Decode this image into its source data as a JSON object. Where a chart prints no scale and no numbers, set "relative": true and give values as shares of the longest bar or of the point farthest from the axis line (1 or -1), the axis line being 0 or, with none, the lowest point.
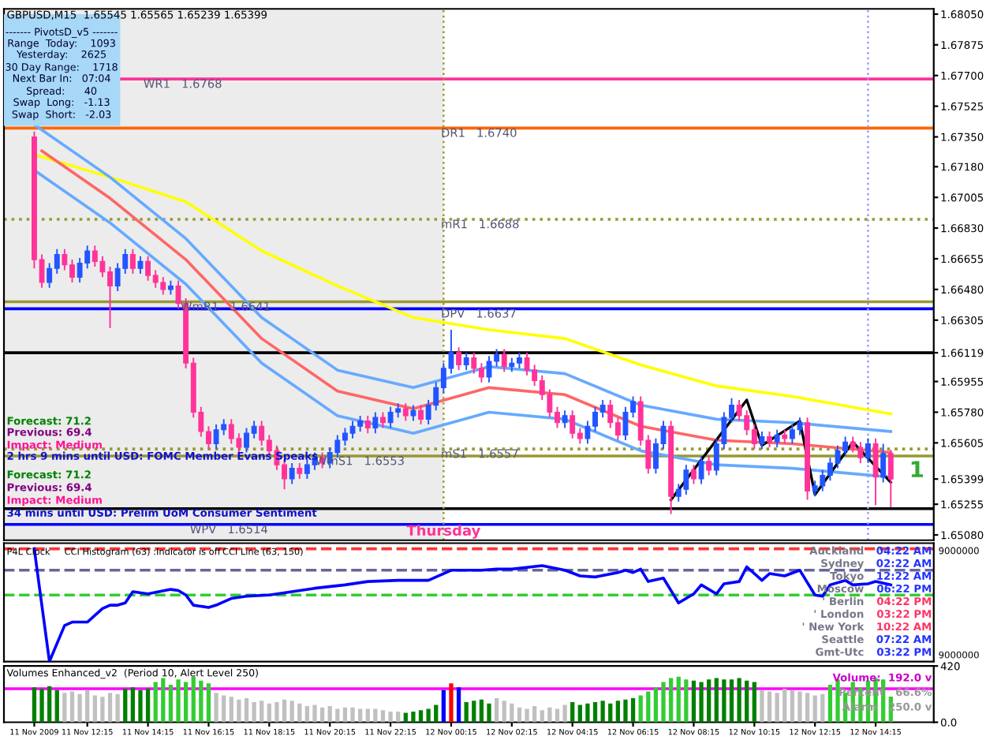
{
  "chart_data": [
    {
      "type": "candlestick",
      "title": "GBPUSD,M15  1.65545 1.65565 1.65239 1.65399",
      "tick_labels": "y",
      "x": [
        "2009-11-11T10:30",
        "2009-11-11T10:45",
        "2009-11-11T11:00",
        "2009-11-11T11:15",
        "2009-11-11T11:30",
        "2009-11-11T11:45",
        "2009-11-11T12:00",
        "2009-11-11T12:15",
        "2009-11-11T12:30",
        "2009-11-11T12:45",
        "2009-11-11T13:00",
        "2009-11-11T13:15",
        "2009-11-11T13:30",
        "2009-11-11T13:45",
        "2009-11-11T14:00",
        "2009-11-11T14:15",
        "2009-11-11T14:30",
        "2009-11-11T14:45",
        "2009-11-11T15:00",
        "2009-11-11T15:15",
        "2009-11-11T15:30",
        "2009-11-11T15:45",
        "2009-11-11T16:00",
        "2009-11-11T16:15",
        "2009-11-11T16:30",
        "2009-11-11T16:45",
        "2009-11-11T17:00",
        "2009-11-11T17:15",
        "2009-11-11T17:30",
        "2009-11-11T17:45",
        "2009-11-11T18:00",
        "2009-11-11T18:15",
        "2009-11-11T18:30",
        "2009-11-11T18:45",
        "2009-11-11T19:00",
        "2009-11-11T19:15",
        "2009-11-11T19:30",
        "2009-11-11T19:45",
        "2009-11-11T20:00",
        "2009-11-11T20:15",
        "2009-11-11T20:30",
        "2009-11-11T20:45",
        "2009-11-11T21:00",
        "2009-11-11T21:15",
        "2009-11-11T21:30",
        "2009-11-11T21:45",
        "2009-11-11T22:00",
        "2009-11-11T22:15",
        "2009-11-11T22:30",
        "2009-11-11T22:45",
        "2009-11-11T23:00",
        "2009-11-11T23:15",
        "2009-11-11T23:30",
        "2009-11-11T23:45",
        "2009-11-12T00:00",
        "2009-11-12T00:15",
        "2009-11-12T00:30",
        "2009-11-12T00:45",
        "2009-11-12T01:00",
        "2009-11-12T01:15",
        "2009-11-12T01:30",
        "2009-11-12T01:45",
        "2009-11-12T02:00",
        "2009-11-12T02:15",
        "2009-11-12T02:30",
        "2009-11-12T02:45",
        "2009-11-12T03:00",
        "2009-11-12T03:15",
        "2009-11-12T03:30",
        "2009-11-12T03:45",
        "2009-11-12T04:00",
        "2009-11-12T04:15",
        "2009-11-12T04:30",
        "2009-11-12T04:45",
        "2009-11-12T05:00",
        "2009-11-12T05:15",
        "2009-11-12T05:30",
        "2009-11-12T05:45",
        "2009-11-12T06:00",
        "2009-11-12T06:15",
        "2009-11-12T06:30",
        "2009-11-12T06:45",
        "2009-11-12T07:00",
        "2009-11-12T07:15",
        "2009-11-12T07:30",
        "2009-11-12T07:45",
        "2009-11-12T08:00",
        "2009-11-12T08:15",
        "2009-11-12T08:30",
        "2009-11-12T08:45",
        "2009-11-12T09:00",
        "2009-11-12T09:15",
        "2009-11-12T09:30",
        "2009-11-12T09:45",
        "2009-11-12T10:00",
        "2009-11-12T10:15",
        "2009-11-12T10:30",
        "2009-11-12T10:45",
        "2009-11-12T11:00",
        "2009-11-12T11:15",
        "2009-11-12T11:30",
        "2009-11-12T11:45",
        "2009-11-12T12:00",
        "2009-11-12T12:15",
        "2009-11-12T12:30",
        "2009-11-12T12:45",
        "2009-11-12T13:00",
        "2009-11-12T13:15",
        "2009-11-12T13:30",
        "2009-11-12T13:45",
        "2009-11-12T14:00",
        "2009-11-12T14:15",
        "2009-11-12T14:30",
        "2009-11-12T14:45"
      ],
      "ohlc": [
        [
          1.6735,
          1.6738,
          1.666,
          1.6665
        ],
        [
          1.6665,
          1.6668,
          1.6649,
          1.6652
        ],
        [
          1.6652,
          1.6663,
          1.6649,
          1.666
        ],
        [
          1.666,
          1.6671,
          1.6657,
          1.6668
        ],
        [
          1.6668,
          1.6671,
          1.6659,
          1.6662
        ],
        [
          1.6662,
          1.6665,
          1.6652,
          1.6655
        ],
        [
          1.6655,
          1.6666,
          1.6652,
          1.6663
        ],
        [
          1.6663,
          1.6673,
          1.666,
          1.667
        ],
        [
          1.667,
          1.6673,
          1.6661,
          1.6664
        ],
        [
          1.6664,
          1.6667,
          1.6655,
          1.6658
        ],
        [
          1.6658,
          1.6661,
          1.6626,
          1.665
        ],
        [
          1.665,
          1.6663,
          1.6647,
          1.666
        ],
        [
          1.666,
          1.6671,
          1.6657,
          1.6668
        ],
        [
          1.6668,
          1.6671,
          1.6657,
          1.666
        ],
        [
          1.666,
          1.6667,
          1.6657,
          1.6664
        ],
        [
          1.6664,
          1.6667,
          1.6653,
          1.6656
        ],
        [
          1.6656,
          1.6659,
          1.6649,
          1.6652
        ],
        [
          1.6652,
          1.6655,
          1.6645,
          1.6648
        ],
        [
          1.6648,
          1.6653,
          1.6645,
          1.665
        ],
        [
          1.665,
          1.6653,
          1.6637,
          1.664
        ],
        [
          1.664,
          1.6643,
          1.6603,
          1.6606
        ],
        [
          1.6606,
          1.6609,
          1.6575,
          1.6578
        ],
        [
          1.6578,
          1.6581,
          1.6564,
          1.6567
        ],
        [
          1.6567,
          1.657,
          1.6557,
          1.656
        ],
        [
          1.656,
          1.6571,
          1.6557,
          1.6568
        ],
        [
          1.6568,
          1.6574,
          1.6565,
          1.6571
        ],
        [
          1.6571,
          1.6574,
          1.656,
          1.6563
        ],
        [
          1.6563,
          1.6566,
          1.6555,
          1.6558
        ],
        [
          1.6558,
          1.6569,
          1.6555,
          1.6566
        ],
        [
          1.6566,
          1.6573,
          1.6563,
          1.657
        ],
        [
          1.657,
          1.6573,
          1.6559,
          1.6562
        ],
        [
          1.6562,
          1.6565,
          1.6553,
          1.6556
        ],
        [
          1.6556,
          1.6559,
          1.6545,
          1.6548
        ],
        [
          1.6548,
          1.6551,
          1.6534,
          1.654
        ],
        [
          1.654,
          1.6549,
          1.6537,
          1.6546
        ],
        [
          1.6546,
          1.6549,
          1.654,
          1.6543
        ],
        [
          1.6543,
          1.6551,
          1.654,
          1.6548
        ],
        [
          1.6548,
          1.6555,
          1.6545,
          1.6552
        ],
        [
          1.6552,
          1.6555,
          1.6546,
          1.6549
        ],
        [
          1.6549,
          1.6558,
          1.6546,
          1.6555
        ],
        [
          1.6555,
          1.6565,
          1.6552,
          1.6562
        ],
        [
          1.6562,
          1.6569,
          1.6559,
          1.6566
        ],
        [
          1.6566,
          1.6573,
          1.6563,
          1.657
        ],
        [
          1.657,
          1.6576,
          1.6567,
          1.6573
        ],
        [
          1.6573,
          1.6576,
          1.6566,
          1.6569
        ],
        [
          1.6569,
          1.6578,
          1.6566,
          1.6575
        ],
        [
          1.6575,
          1.6578,
          1.6569,
          1.6572
        ],
        [
          1.6572,
          1.6581,
          1.6569,
          1.6578
        ],
        [
          1.6578,
          1.6583,
          1.6575,
          1.658
        ],
        [
          1.658,
          1.6583,
          1.6573,
          1.6576
        ],
        [
          1.6576,
          1.6582,
          1.6573,
          1.6579
        ],
        [
          1.6579,
          1.6582,
          1.6571,
          1.6574
        ],
        [
          1.6574,
          1.6585,
          1.6571,
          1.6582
        ],
        [
          1.6582,
          1.6595,
          1.6579,
          1.6592
        ],
        [
          1.6592,
          1.6606,
          1.6589,
          1.6603
        ],
        [
          1.6603,
          1.6625,
          1.66,
          1.6612
        ],
        [
          1.6612,
          1.6615,
          1.6602,
          1.6605
        ],
        [
          1.6605,
          1.6612,
          1.6602,
          1.6609
        ],
        [
          1.6609,
          1.6612,
          1.66,
          1.6603
        ],
        [
          1.6603,
          1.6606,
          1.6595,
          1.6598
        ],
        [
          1.6598,
          1.661,
          1.6595,
          1.6607
        ],
        [
          1.6607,
          1.6614,
          1.6604,
          1.6611
        ],
        [
          1.6611,
          1.6614,
          1.6601,
          1.6604
        ],
        [
          1.6604,
          1.6609,
          1.6601,
          1.6606
        ],
        [
          1.6606,
          1.6612,
          1.6603,
          1.6609
        ],
        [
          1.6609,
          1.6612,
          1.6599,
          1.6602
        ],
        [
          1.6602,
          1.6605,
          1.6593,
          1.6596
        ],
        [
          1.6596,
          1.6599,
          1.6585,
          1.6588
        ],
        [
          1.6588,
          1.6591,
          1.6575,
          1.6578
        ],
        [
          1.6578,
          1.6581,
          1.6569,
          1.6572
        ],
        [
          1.6572,
          1.6579,
          1.6569,
          1.6576
        ],
        [
          1.6576,
          1.6579,
          1.6563,
          1.6566
        ],
        [
          1.6566,
          1.6569,
          1.656,
          1.6563
        ],
        [
          1.6563,
          1.6573,
          1.656,
          1.657
        ],
        [
          1.657,
          1.6581,
          1.6567,
          1.6578
        ],
        [
          1.6578,
          1.6585,
          1.6575,
          1.6582
        ],
        [
          1.6582,
          1.6585,
          1.6569,
          1.6572
        ],
        [
          1.6572,
          1.6575,
          1.6562,
          1.6565
        ],
        [
          1.6565,
          1.6581,
          1.6562,
          1.6578
        ],
        [
          1.6578,
          1.6587,
          1.6575,
          1.6584
        ],
        [
          1.6584,
          1.6587,
          1.6559,
          1.6562
        ],
        [
          1.6562,
          1.6565,
          1.6543,
          1.6546
        ],
        [
          1.6546,
          1.6563,
          1.6543,
          1.656
        ],
        [
          1.656,
          1.6573,
          1.6557,
          1.657
        ],
        [
          1.657,
          1.6573,
          1.652,
          1.653
        ],
        [
          1.653,
          1.6537,
          1.6527,
          1.6534
        ],
        [
          1.6534,
          1.6548,
          1.6531,
          1.6545
        ],
        [
          1.6545,
          1.6548,
          1.6537,
          1.654
        ],
        [
          1.654,
          1.6553,
          1.6537,
          1.655
        ],
        [
          1.655,
          1.6553,
          1.6542,
          1.6545
        ],
        [
          1.6545,
          1.6563,
          1.6542,
          1.656
        ],
        [
          1.656,
          1.6578,
          1.6557,
          1.6575
        ],
        [
          1.6575,
          1.6586,
          1.6572,
          1.6582
        ],
        [
          1.6582,
          1.6585,
          1.6573,
          1.6576
        ],
        [
          1.6576,
          1.6579,
          1.6565,
          1.6568
        ],
        [
          1.6568,
          1.6571,
          1.6557,
          1.656
        ],
        [
          1.656,
          1.6567,
          1.6557,
          1.6564
        ],
        [
          1.6564,
          1.6567,
          1.6558,
          1.6561
        ],
        [
          1.6561,
          1.6568,
          1.6558,
          1.6565
        ],
        [
          1.6565,
          1.6568,
          1.656,
          1.6563
        ],
        [
          1.6563,
          1.6571,
          1.656,
          1.6568
        ],
        [
          1.6568,
          1.6575,
          1.6565,
          1.6572
        ],
        [
          1.6572,
          1.6575,
          1.6528,
          1.6533
        ],
        [
          1.6533,
          1.6539,
          1.653,
          1.6536
        ],
        [
          1.6536,
          1.6545,
          1.6533,
          1.6542
        ],
        [
          1.6542,
          1.6552,
          1.6539,
          1.6549
        ],
        [
          1.6549,
          1.6559,
          1.6546,
          1.6556
        ],
        [
          1.6556,
          1.6564,
          1.6553,
          1.6561
        ],
        [
          1.6561,
          1.6564,
          1.6555,
          1.6558
        ],
        [
          1.6558,
          1.6561,
          1.6549,
          1.6552
        ],
        [
          1.6552,
          1.6563,
          1.6549,
          1.656
        ],
        [
          1.656,
          1.6563,
          1.6525,
          1.6541
        ],
        [
          1.6541,
          1.656,
          1.6538,
          1.65545
        ],
        [
          1.65545,
          1.65565,
          1.65239,
          1.65399
        ]
      ],
      "series": [
        {
          "type": "line",
          "color": "#ffff00",
          "x": [
            "2009-11-11T10:30",
            "2009-11-11T13:00",
            "2009-11-11T15:30",
            "2009-11-11T18:00",
            "2009-11-11T20:30",
            "2009-11-11T23:00",
            "2009-11-12T01:30",
            "2009-11-12T04:00",
            "2009-11-12T06:30",
            "2009-11-12T09:00",
            "2009-11-12T11:30",
            "2009-11-12T14:45"
          ],
          "values": [
            1.6725,
            1.6712,
            1.6698,
            1.667,
            1.665,
            1.6632,
            1.6625,
            1.662,
            1.6605,
            1.6593,
            1.6587,
            1.6577
          ]
        },
        {
          "type": "line",
          "color": "#ff6666",
          "x": [
            "2009-11-11T10:45",
            "2009-11-11T13:00",
            "2009-11-11T15:30",
            "2009-11-11T18:00",
            "2009-11-11T20:30",
            "2009-11-11T23:00",
            "2009-11-12T01:30",
            "2009-11-12T04:00",
            "2009-11-12T06:30",
            "2009-11-12T09:00",
            "2009-11-12T11:30",
            "2009-11-12T14:45"
          ],
          "values": [
            1.6727,
            1.67,
            1.6665,
            1.662,
            1.659,
            1.658,
            1.6592,
            1.6588,
            1.657,
            1.6562,
            1.656,
            1.6555
          ]
        },
        {
          "type": "line",
          "color": "#66aaff",
          "x": [
            "2009-11-11T10:30",
            "2009-11-11T13:00",
            "2009-11-11T15:30",
            "2009-11-11T18:00",
            "2009-11-11T20:30",
            "2009-11-11T23:00",
            "2009-11-12T01:30",
            "2009-11-12T04:00",
            "2009-11-12T06:30",
            "2009-11-12T09:00",
            "2009-11-12T11:30",
            "2009-11-12T14:45"
          ],
          "values": [
            1.6742,
            1.6712,
            1.6677,
            1.6632,
            1.6602,
            1.6592,
            1.6604,
            1.66,
            1.6582,
            1.6574,
            1.6572,
            1.6567
          ]
        },
        {
          "type": "line",
          "color": "#66aaff",
          "x": [
            "2009-11-11T10:30",
            "2009-11-11T13:00",
            "2009-11-11T15:30",
            "2009-11-11T18:00",
            "2009-11-11T20:30",
            "2009-11-11T23:00",
            "2009-11-12T01:30",
            "2009-11-12T04:00",
            "2009-11-12T06:30",
            "2009-11-12T09:00",
            "2009-11-12T11:30",
            "2009-11-12T14:45"
          ],
          "values": [
            1.6716,
            1.6686,
            1.6651,
            1.6606,
            1.6576,
            1.6566,
            1.6578,
            1.6574,
            1.6556,
            1.6548,
            1.6546,
            1.6541
          ]
        },
        {
          "type": "line",
          "color": "#000000",
          "x": [
            "2009-11-12T07:30",
            "2009-11-12T10:00",
            "2009-11-12T10:30",
            "2009-11-12T11:45",
            "2009-11-12T12:15",
            "2009-11-12T13:30",
            "2009-11-12T14:45"
          ],
          "values": [
            1.6528,
            1.6585,
            1.6559,
            1.6573,
            1.6531,
            1.6561,
            1.6538
          ]
        }
      ],
      "xlim": [
        "2009-11-11T09:30",
        "2009-11-12T16:10"
      ],
      "ylim": [
        1.6505,
        1.6808
      ],
      "yticks": [
        {
          "value": 1.6805,
          "label": "1.68050"
        },
        {
          "value": 1.67875,
          "label": "1.67875"
        },
        {
          "value": 1.677,
          "label": "1.67700"
        },
        {
          "value": 1.67525,
          "label": "1.67525"
        },
        {
          "value": 1.6735,
          "label": "1.67350"
        },
        {
          "value": 1.6718,
          "label": "1.67180"
        },
        {
          "value": 1.67005,
          "label": "1.67005"
        },
        {
          "value": 1.6683,
          "label": "1.66830"
        },
        {
          "value": 1.66655,
          "label": "1.66655"
        },
        {
          "value": 1.6648,
          "label": "1.66480"
        },
        {
          "value": 1.66305,
          "label": "1.66305"
        },
        {
          "value": 1.66119,
          "label": "1.66119"
        },
        {
          "value": 1.65955,
          "label": "1.65955"
        },
        {
          "value": 1.6578,
          "label": "1.65780"
        },
        {
          "value": 1.65605,
          "label": "1.65605"
        },
        {
          "value": 1.65399,
          "label": "1.65399"
        },
        {
          "value": 1.65255,
          "label": "1.65255"
        },
        {
          "value": 1.6508,
          "label": "1.65080"
        }
      ],
      "bands": [
        {
          "axis": "x",
          "from": "2009-11-11T09:30",
          "to": "2009-11-12T00:00",
          "color": "#ececec"
        }
      ],
      "ref_lines": [
        {
          "axis": "y",
          "value": 1.6768,
          "label": "WR1   1.6768",
          "color": "#ff3399",
          "line_style": "solid"
        },
        {
          "axis": "y",
          "value": 1.674,
          "label": "DR1   1.6740",
          "color": "#ff6600",
          "line_style": "solid"
        },
        {
          "axis": "y",
          "value": 1.6688,
          "label": "mR1   1.6688",
          "color": "#999933",
          "line_style": "dotted"
        },
        {
          "axis": "y",
          "value": 1.6641,
          "label": "WmR1   1.6641",
          "color": "#999933",
          "line_style": "solid"
        },
        {
          "axis": "y",
          "value": 1.6637,
          "label": "DPV   1.6637",
          "color": "#0000ff",
          "line_style": "solid"
        },
        {
          "axis": "y",
          "value": 1.6557,
          "label": "mS1   1.6557",
          "color": "#999933",
          "line_style": "dotted"
        },
        {
          "axis": "y",
          "value": 1.6553,
          "label": "WmS1   1.6553",
          "color": "#999933",
          "line_style": "solid"
        },
        {
          "axis": "y",
          "value": 1.6514,
          "label": "WPV   1.6514",
          "color": "#0000ff",
          "line_style": "solid"
        },
        {
          "axis": "y",
          "value": 1.66119,
          "color": "#000000",
          "line_style": "solid"
        },
        {
          "axis": "y",
          "value": 1.6523,
          "color": "#000000",
          "line_style": "solid"
        },
        {
          "axis": "x",
          "value": "2009-11-12T00:00",
          "label": "Thursday",
          "color": "#999933",
          "line_style": "dotted"
        },
        {
          "axis": "x",
          "value": "2009-11-12T14:00",
          "color": "#9999ff",
          "line_style": "dotted"
        }
      ],
      "annotations": [
        "------- PivotsD_v5 -------",
        "Range  Today:    1093",
        "Yesterday:    2625",
        "30 Day Range:    1718",
        "Next Bar In:   07:04",
        "Spread:      40",
        "Swap  Long:   -1.13",
        "Swap  Short:   -2.03",
        "Forecast: 71.2",
        "Previous: 69.4",
        "Impact: Medium",
        "2 hrs 9 mins until USD: FOMC Member Evans Speaks",
        "Forecast: 71.2",
        "Previous: 69.4",
        "Impact: Medium",
        "34 mins until USD: Prelim UoM Consumer Sentiment",
        "1"
      ]
    },
    {
      "type": "line",
      "relative": true,
      "tick_labels": false,
      "xlim": [
        "2009-11-11T09:30",
        "2009-11-12T16:10"
      ],
      "series": [
        {
          "color": "#0000ff",
          "x": [
            "2009-11-11T10:30",
            "2009-11-11T11:00",
            "2009-11-11T11:30",
            "2009-11-11T11:45",
            "2009-11-11T12:15",
            "2009-11-11T12:45",
            "2009-11-11T13:00",
            "2009-11-11T13:15",
            "2009-11-11T13:30",
            "2009-11-11T13:45",
            "2009-11-11T14:15",
            "2009-11-11T15:00",
            "2009-11-11T15:15",
            "2009-11-11T15:30",
            "2009-11-11T15:45",
            "2009-11-11T16:15",
            "2009-11-11T16:30",
            "2009-11-11T17:00",
            "2009-11-11T17:30",
            "2009-11-11T18:15",
            "2009-11-11T19:00",
            "2009-11-11T19:45",
            "2009-11-11T20:45",
            "2009-11-11T21:30",
            "2009-11-11T22:30",
            "2009-11-11T23:30",
            "2009-11-12T00:15",
            "2009-11-12T01:15",
            "2009-11-12T01:45",
            "2009-11-12T02:15",
            "2009-11-12T03:15",
            "2009-11-12T04:00",
            "2009-11-12T04:30",
            "2009-11-12T05:00",
            "2009-11-12T05:45",
            "2009-11-12T06:00",
            "2009-11-12T06:15",
            "2009-11-12T06:30",
            "2009-11-12T06:45",
            "2009-11-12T07:15",
            "2009-11-12T07:45",
            "2009-11-12T08:15",
            "2009-11-12T08:30",
            "2009-11-12T09:00",
            "2009-11-12T09:15",
            "2009-11-12T09:45",
            "2009-11-12T10:00",
            "2009-11-12T10:30",
            "2009-11-12T10:45",
            "2009-11-12T11:15",
            "2009-11-12T11:45",
            "2009-11-12T12:15",
            "2009-11-12T12:30",
            "2009-11-12T12:45",
            "2009-11-12T13:15",
            "2009-11-12T13:30",
            "2009-11-12T14:00",
            "2009-11-12T14:15",
            "2009-11-12T14:45"
          ],
          "values": [
            1.0,
            0.0,
            0.32,
            0.35,
            0.35,
            0.47,
            0.5,
            0.5,
            0.52,
            0.62,
            0.6,
            0.64,
            0.63,
            0.59,
            0.5,
            0.48,
            0.5,
            0.56,
            0.58,
            0.59,
            0.62,
            0.65,
            0.68,
            0.71,
            0.72,
            0.72,
            0.81,
            0.81,
            0.82,
            0.82,
            0.85,
            0.81,
            0.76,
            0.75,
            0.79,
            0.81,
            0.79,
            0.82,
            0.71,
            0.74,
            0.52,
            0.6,
            0.68,
            0.6,
            0.69,
            0.71,
            0.84,
            0.72,
            0.78,
            0.76,
            0.81,
            0.59,
            0.58,
            0.68,
            0.72,
            0.68,
            0.69,
            0.71,
            0.68
          ]
        }
      ],
      "ref_lines": [
        {
          "axis": "y",
          "value": 1.0,
          "color": "#ff3333",
          "line_style": "dashed"
        },
        {
          "axis": "y",
          "value": 0.81,
          "color": "#666699",
          "line_style": "dashed"
        },
        {
          "axis": "y",
          "value": 0.59,
          "color": "#33cc33",
          "line_style": "dashed"
        }
      ],
      "annotations": [
        "P4L Clock",
        "CCI Histogram (63) :Indicator is off",
        "CCI Line (63, 150)",
        "Auckland",
        "04:22 AM",
        "Sydney",
        "02:22 AM",
        "Tokyo",
        "12:22 AM",
        "Moscow",
        "06:22 PM",
        "' Berlin",
        "04:22 PM",
        "' London",
        "03:22 PM",
        "' New York",
        "10:22 AM",
        "Seattle",
        "07:22 AM",
        "Gmt-Utc",
        "03:22 PM",
        "9000000",
        "9000000"
      ]
    },
    {
      "type": "bar",
      "xlim": [
        "2009-11-11T09:30",
        "2009-11-12T16:10"
      ],
      "ylim": [
        0,
        420
      ],
      "yticks": [
        {
          "value": 420,
          "label": "420"
        },
        {
          "value": 0,
          "label": "0.0"
        }
      ],
      "xticks": [
        {
          "value": "2009-11-11T10:30",
          "label": "11 Nov 2009"
        },
        {
          "value": "2009-11-11T12:15",
          "label": "11 Nov 12:15"
        },
        {
          "value": "2009-11-11T14:15",
          "label": "11 Nov 14:15"
        },
        {
          "value": "2009-11-11T16:15",
          "label": "11 Nov 16:15"
        },
        {
          "value": "2009-11-11T18:15",
          "label": "11 Nov 18:15"
        },
        {
          "value": "2009-11-11T20:15",
          "label": "11 Nov 20:15"
        },
        {
          "value": "2009-11-11T22:15",
          "label": "11 Nov 22:15"
        },
        {
          "value": "2009-11-12T00:15",
          "label": "12 Nov 00:15"
        },
        {
          "value": "2009-11-12T02:15",
          "label": "12 Nov 02:15"
        },
        {
          "value": "2009-11-12T04:15",
          "label": "12 Nov 04:15"
        },
        {
          "value": "2009-11-12T06:15",
          "label": "12 Nov 06:15"
        },
        {
          "value": "2009-11-12T08:15",
          "label": "12 Nov 08:15"
        },
        {
          "value": "2009-11-12T10:15",
          "label": "12 Nov 10:15"
        },
        {
          "value": "2009-11-12T12:15",
          "label": "12 Nov 12:15"
        },
        {
          "value": "2009-11-12T14:15",
          "label": "12 Nov 14:15"
        }
      ],
      "x": [
        "2009-11-11T10:30",
        "2009-11-11T10:45",
        "2009-11-11T11:00",
        "2009-11-11T11:15",
        "2009-11-11T11:30",
        "2009-11-11T11:45",
        "2009-11-11T12:00",
        "2009-11-11T12:15",
        "2009-11-11T12:30",
        "2009-11-11T12:45",
        "2009-11-11T13:00",
        "2009-11-11T13:15",
        "2009-11-11T13:30",
        "2009-11-11T13:45",
        "2009-11-11T14:00",
        "2009-11-11T14:15",
        "2009-11-11T14:30",
        "2009-11-11T14:45",
        "2009-11-11T15:00",
        "2009-11-11T15:15",
        "2009-11-11T15:30",
        "2009-11-11T15:45",
        "2009-11-11T16:00",
        "2009-11-11T16:15",
        "2009-11-11T16:30",
        "2009-11-11T16:45",
        "2009-11-11T17:00",
        "2009-11-11T17:15",
        "2009-11-11T17:30",
        "2009-11-11T17:45",
        "2009-11-11T18:00",
        "2009-11-11T18:15",
        "2009-11-11T18:30",
        "2009-11-11T18:45",
        "2009-11-11T19:00",
        "2009-11-11T19:15",
        "2009-11-11T19:30",
        "2009-11-11T19:45",
        "2009-11-11T20:00",
        "2009-11-11T20:15",
        "2009-11-11T20:30",
        "2009-11-11T20:45",
        "2009-11-11T21:00",
        "2009-11-11T21:15",
        "2009-11-11T21:30",
        "2009-11-11T21:45",
        "2009-11-11T22:00",
        "2009-11-11T22:15",
        "2009-11-11T22:30",
        "2009-11-11T22:45",
        "2009-11-11T23:00",
        "2009-11-11T23:15",
        "2009-11-11T23:30",
        "2009-11-11T23:45",
        "2009-11-12T00:00",
        "2009-11-12T00:15",
        "2009-11-12T00:30",
        "2009-11-12T00:45",
        "2009-11-12T01:00",
        "2009-11-12T01:15",
        "2009-11-12T01:30",
        "2009-11-12T01:45",
        "2009-11-12T02:00",
        "2009-11-12T02:15",
        "2009-11-12T02:30",
        "2009-11-12T02:45",
        "2009-11-12T03:00",
        "2009-11-12T03:15",
        "2009-11-12T03:30",
        "2009-11-12T03:45",
        "2009-11-12T04:00",
        "2009-11-12T04:15",
        "2009-11-12T04:30",
        "2009-11-12T04:45",
        "2009-11-12T05:00",
        "2009-11-12T05:15",
        "2009-11-12T05:30",
        "2009-11-12T05:45",
        "2009-11-12T06:00",
        "2009-11-12T06:15",
        "2009-11-12T06:30",
        "2009-11-12T06:45",
        "2009-11-12T07:00",
        "2009-11-12T07:15",
        "2009-11-12T07:30",
        "2009-11-12T07:45",
        "2009-11-12T08:00",
        "2009-11-12T08:15",
        "2009-11-12T08:30",
        "2009-11-12T08:45",
        "2009-11-12T09:00",
        "2009-11-12T09:15",
        "2009-11-12T09:30",
        "2009-11-12T09:45",
        "2009-11-12T10:00",
        "2009-11-12T10:15",
        "2009-11-12T10:30",
        "2009-11-12T10:45",
        "2009-11-12T11:00",
        "2009-11-12T11:15",
        "2009-11-12T11:30",
        "2009-11-12T11:45",
        "2009-11-12T12:00",
        "2009-11-12T12:15",
        "2009-11-12T12:30",
        "2009-11-12T12:45",
        "2009-11-12T13:00",
        "2009-11-12T13:15",
        "2009-11-12T13:30",
        "2009-11-12T13:45",
        "2009-11-12T14:00",
        "2009-11-12T14:15",
        "2009-11-12T14:30",
        "2009-11-12T14:45"
      ],
      "values": [
        260,
        250,
        270,
        240,
        220,
        230,
        210,
        240,
        200,
        190,
        220,
        210,
        250,
        260,
        240,
        250,
        300,
        330,
        280,
        320,
        300,
        340,
        310,
        290,
        220,
        200,
        190,
        170,
        180,
        150,
        160,
        140,
        150,
        170,
        160,
        140,
        120,
        130,
        110,
        120,
        100,
        110,
        110,
        100,
        100,
        100,
        90,
        80,
        80,
        70,
        80,
        90,
        100,
        130,
        240,
        290,
        260,
        150,
        160,
        170,
        140,
        180,
        160,
        140,
        110,
        100,
        120,
        90,
        110,
        100,
        130,
        150,
        130,
        140,
        150,
        160,
        140,
        160,
        170,
        180,
        200,
        230,
        260,
        300,
        330,
        340,
        320,
        310,
        300,
        320,
        330,
        320,
        320,
        330,
        310,
        300,
        240,
        230,
        220,
        250,
        240,
        230,
        220,
        200,
        210,
        280,
        320,
        220,
        300,
        260,
        310,
        330,
        320,
        192
      ],
      "colors": [
        "#008000",
        "#008000",
        "#008000",
        "#008000",
        "#c0c0c0",
        "#c0c0c0",
        "#c0c0c0",
        "#c0c0c0",
        "#c0c0c0",
        "#c0c0c0",
        "#c0c0c0",
        "#c0c0c0",
        "#008000",
        "#008000",
        "#008000",
        "#008000",
        "#33cc33",
        "#33cc33",
        "#33cc33",
        "#33cc33",
        "#33cc33",
        "#33cc33",
        "#33cc33",
        "#33cc33",
        "#c0c0c0",
        "#c0c0c0",
        "#c0c0c0",
        "#c0c0c0",
        "#c0c0c0",
        "#c0c0c0",
        "#c0c0c0",
        "#c0c0c0",
        "#c0c0c0",
        "#c0c0c0",
        "#c0c0c0",
        "#c0c0c0",
        "#c0c0c0",
        "#c0c0c0",
        "#c0c0c0",
        "#c0c0c0",
        "#c0c0c0",
        "#c0c0c0",
        "#c0c0c0",
        "#c0c0c0",
        "#c0c0c0",
        "#c0c0c0",
        "#c0c0c0",
        "#c0c0c0",
        "#c0c0c0",
        "#008000",
        "#008000",
        "#008000",
        "#008000",
        "#008000",
        "#0000ff",
        "#ff0000",
        "#0000ff",
        "#008000",
        "#008000",
        "#008000",
        "#008000",
        "#c0c0c0",
        "#c0c0c0",
        "#c0c0c0",
        "#c0c0c0",
        "#c0c0c0",
        "#c0c0c0",
        "#c0c0c0",
        "#c0c0c0",
        "#c0c0c0",
        "#c0c0c0",
        "#008000",
        "#008000",
        "#008000",
        "#008000",
        "#008000",
        "#008000",
        "#008000",
        "#008000",
        "#008000",
        "#33cc33",
        "#33cc33",
        "#33cc33",
        "#33cc33",
        "#33cc33",
        "#33cc33",
        "#33cc33",
        "#008000",
        "#008000",
        "#008000",
        "#008000",
        "#008000",
        "#008000",
        "#008000",
        "#008000",
        "#008000",
        "#c0c0c0",
        "#c0c0c0",
        "#c0c0c0",
        "#c0c0c0",
        "#c0c0c0",
        "#c0c0c0",
        "#c0c0c0",
        "#c0c0c0",
        "#c0c0c0",
        "#33cc33",
        "#33cc33",
        "#33cc33",
        "#33cc33",
        "#33cc33",
        "#33cc33",
        "#33cc33",
        "#33cc33",
        "#33cc33"
      ],
      "ref_lines": [
        {
          "axis": "y",
          "value": 250,
          "color": "#ff00ff",
          "line_style": "solid"
        }
      ],
      "annotations": [
        "Volumes Enhanced_v2  (Period 10, Alert Level 250)",
        "Volume:  192.0 v",
        "Percent   66.6%",
        "Alarm   250.0 v"
      ]
    }
  ]
}
